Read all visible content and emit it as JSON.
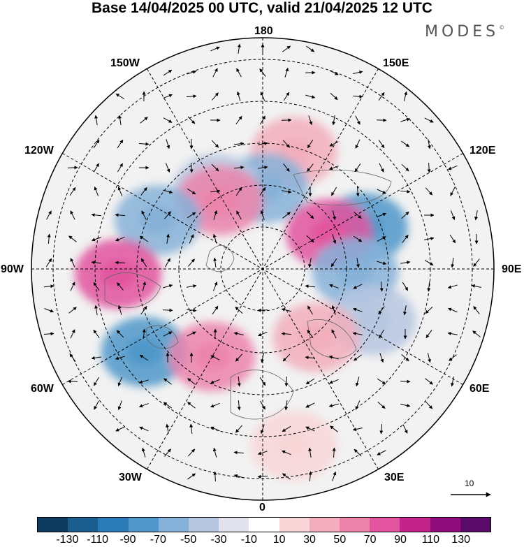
{
  "title": "Base 14/04/2025 00 UTC, valid 21/04/2025 12 UTC",
  "brand": "MODES",
  "brand_mark": "©",
  "longitude_labels": {
    "top": "180",
    "bottom": "0",
    "left": "90W",
    "right": "90E",
    "upper_left_1": "150W",
    "upper_left_2": "120W",
    "upper_right_1": "150E",
    "upper_right_2": "120E",
    "lower_left_1": "60W",
    "lower_left_2": "30W",
    "lower_right_1": "60E",
    "lower_right_2": "30E"
  },
  "reference_vector": {
    "label": "10"
  },
  "colorbar": {
    "colors": [
      "#0d3b5e",
      "#1a5d8f",
      "#2a7ab8",
      "#4f97c9",
      "#86b1d8",
      "#b6c6e0",
      "#e3e3ef",
      "#ffffff",
      "#f8d6d8",
      "#f2aebc",
      "#ec84ab",
      "#e2549f",
      "#c42389",
      "#8e0d7b",
      "#5a0a69"
    ],
    "labels": [
      "-130",
      "-110",
      "-90",
      "-70",
      "-50",
      "-30",
      "-10",
      "10",
      "30",
      "50",
      "70",
      "90",
      "110",
      "130"
    ]
  },
  "anomaly_centers": [
    {
      "lon": 112,
      "lat": 52,
      "color": "#4f97c9"
    },
    {
      "lon": 165,
      "lat": 48,
      "color": "#f2aebc"
    },
    {
      "lon": 178,
      "lat": 62,
      "color": "#86b1d8"
    },
    {
      "lon": -150,
      "lat": 58,
      "color": "#b6c6e0"
    },
    {
      "lon": -148,
      "lat": 62,
      "color": "#ec84ab"
    },
    {
      "lon": 118,
      "lat": 64,
      "color": "#e2549f"
    },
    {
      "lon": -115,
      "lat": 50,
      "color": "#86b1d8"
    },
    {
      "lon": -88,
      "lat": 40,
      "color": "#e2549f"
    },
    {
      "lon": 88,
      "lat": 58,
      "color": "#86b1d8"
    },
    {
      "lon": -55,
      "lat": 40,
      "color": "#4f97c9"
    },
    {
      "lon": -30,
      "lat": 55,
      "color": "#ec84ab"
    },
    {
      "lon": 65,
      "lat": 48,
      "color": "#b6c6e0"
    },
    {
      "lon": 38,
      "lat": 60,
      "color": "#f2aebc"
    },
    {
      "lon": 10,
      "lat": 28,
      "color": "#f8d6d8"
    }
  ]
}
